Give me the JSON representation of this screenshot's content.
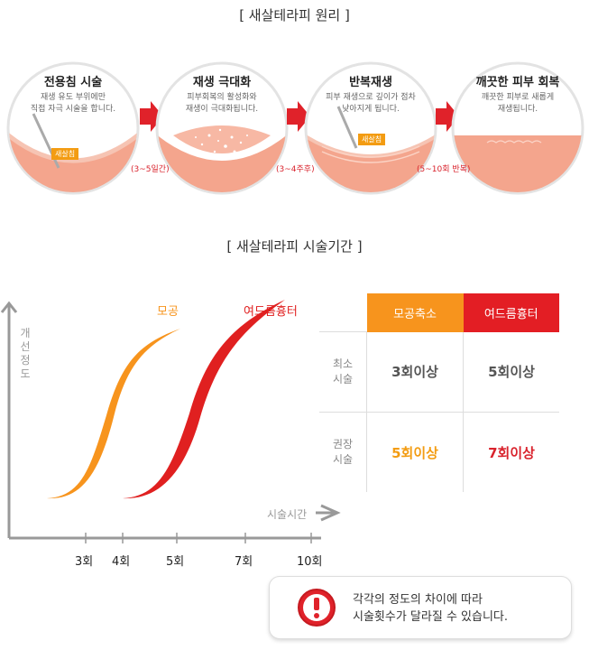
{
  "principle": {
    "title": "[ 새살테라피 원리 ]",
    "steps": [
      {
        "title": "전용침 시술",
        "desc": "재생 유도 부위에만\n직접 자극 시술을 합니다.",
        "tag": "새살침"
      },
      {
        "title": "재생 극대화",
        "desc": "피부회복의 활성화와\n재생이 극대화됩니다."
      },
      {
        "title": "반복재생",
        "desc": "피부 재생으로 깊이가 점차\n낮아지게 됩니다.",
        "tag": "새살침"
      },
      {
        "title": "깨끗한 피부 회복",
        "desc": "깨끗한 피부로 새롭게\n재생됩니다."
      }
    ],
    "periods": [
      "(3~5일간)",
      "(3~4주후)",
      "(5~10회 반복)"
    ]
  },
  "period_section": {
    "title": "[ 새살테라피 시술기간 ]"
  },
  "chart_data": {
    "type": "line",
    "ylabel": "개선정도",
    "xlabel": "시술시간",
    "x_ticks": [
      "3회",
      "4회",
      "5회",
      "7회",
      "10회"
    ],
    "series": [
      {
        "name": "모공",
        "color": "#f7941d"
      },
      {
        "name": "여드름흉터",
        "color": "#e02020"
      }
    ]
  },
  "table": {
    "headers": [
      "모공축소",
      "여드름흉터"
    ],
    "header_colors": [
      "#f7941d",
      "#e31e24"
    ],
    "rows": [
      {
        "label": "최소\n시술",
        "values": [
          "3회이상",
          "5회이상"
        ],
        "colors": [
          "#555555",
          "#555555"
        ]
      },
      {
        "label": "권장\n시술",
        "values": [
          "5회이상",
          "7회이상"
        ],
        "colors": [
          "#f39c12",
          "#d9232d"
        ]
      }
    ]
  },
  "notice": {
    "icon": "exclamation-icon",
    "text": "각각의 정도의 차이에 따라\n시술횟수가 달라질 수 있습니다."
  }
}
